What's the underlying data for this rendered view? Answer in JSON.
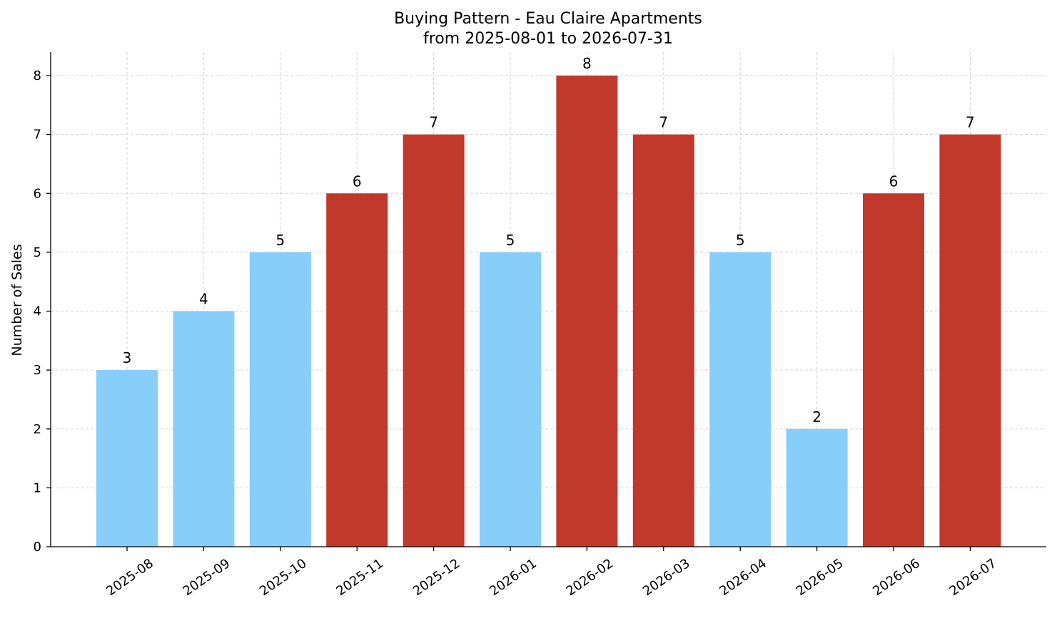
{
  "chart_data": {
    "type": "bar",
    "title_line1": "Buying Pattern - Eau Claire Apartments",
    "title_line2": "from 2025-08-01 to 2026-07-31",
    "xlabel": "",
    "ylabel": "Number of Sales",
    "ylim": [
      0,
      8.4
    ],
    "yticks": [
      0,
      1,
      2,
      3,
      4,
      5,
      6,
      7,
      8
    ],
    "grid": true,
    "categories": [
      "2025-08",
      "2025-09",
      "2025-10",
      "2025-11",
      "2025-12",
      "2026-01",
      "2026-02",
      "2026-03",
      "2026-04",
      "2026-05",
      "2026-06",
      "2026-07"
    ],
    "values": [
      3,
      4,
      5,
      6,
      7,
      5,
      8,
      7,
      5,
      2,
      6,
      7
    ],
    "bar_colors": [
      "#87CEFA",
      "#87CEFA",
      "#87CEFA",
      "#C0392B",
      "#C0392B",
      "#87CEFA",
      "#C0392B",
      "#C0392B",
      "#87CEFA",
      "#87CEFA",
      "#C0392B",
      "#C0392B"
    ]
  }
}
